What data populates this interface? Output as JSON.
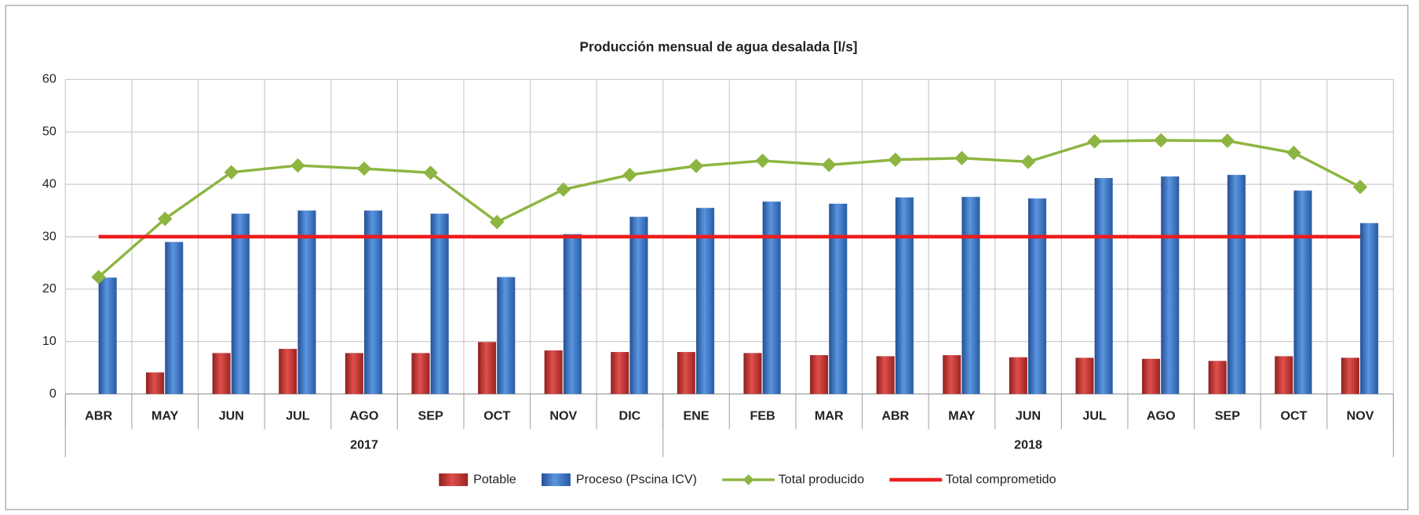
{
  "chart_data": {
    "type": "combo",
    "title": "Producción mensual de agua desalada [l/s]",
    "groups": [
      {
        "label": "2017",
        "categories": [
          "ABR",
          "MAY",
          "JUN",
          "JUL",
          "AGO",
          "SEP",
          "OCT",
          "NOV",
          "DIC"
        ]
      },
      {
        "label": "2018",
        "categories": [
          "ENE",
          "FEB",
          "MAR",
          "ABR",
          "MAY",
          "JUN",
          "JUL",
          "AGO",
          "SEP",
          "OCT",
          "NOV"
        ]
      }
    ],
    "series": [
      {
        "name": "Potable",
        "type": "bar",
        "color": "#c0302e",
        "values": [
          0,
          4.1,
          7.8,
          8.6,
          7.8,
          7.8,
          9.9,
          8.3,
          8.0,
          8.0,
          7.8,
          7.4,
          7.2,
          7.4,
          7.0,
          6.9,
          6.7,
          6.3,
          7.2,
          6.9
        ]
      },
      {
        "name": "Proceso (Pscina ICV)",
        "type": "bar",
        "color": "#3a74c4",
        "values": [
          22.2,
          29.0,
          34.4,
          35.0,
          35.0,
          34.4,
          22.3,
          30.5,
          33.8,
          35.5,
          36.7,
          36.3,
          37.5,
          37.6,
          37.3,
          41.2,
          41.5,
          41.8,
          38.8,
          32.6
        ]
      },
      {
        "name": "Total producido",
        "type": "line",
        "marker": "diamond",
        "color": "#8db541",
        "values": [
          22.3,
          33.4,
          42.3,
          43.6,
          43.0,
          42.2,
          32.8,
          39.0,
          41.8,
          43.5,
          44.5,
          43.7,
          44.7,
          45.0,
          44.3,
          48.2,
          48.4,
          48.3,
          46.0,
          39.5
        ]
      },
      {
        "name": "Total comprometido",
        "type": "line",
        "color": "#ee1c1c",
        "values": [
          30,
          30,
          30,
          30,
          30,
          30,
          30,
          30,
          30,
          30,
          30,
          30,
          30,
          30,
          30,
          30,
          30,
          30,
          30,
          30
        ]
      }
    ],
    "ylim": [
      0,
      60
    ],
    "yticks": [
      0,
      10,
      20,
      30,
      40,
      50,
      60
    ],
    "grid": true,
    "legend": "bottom"
  }
}
